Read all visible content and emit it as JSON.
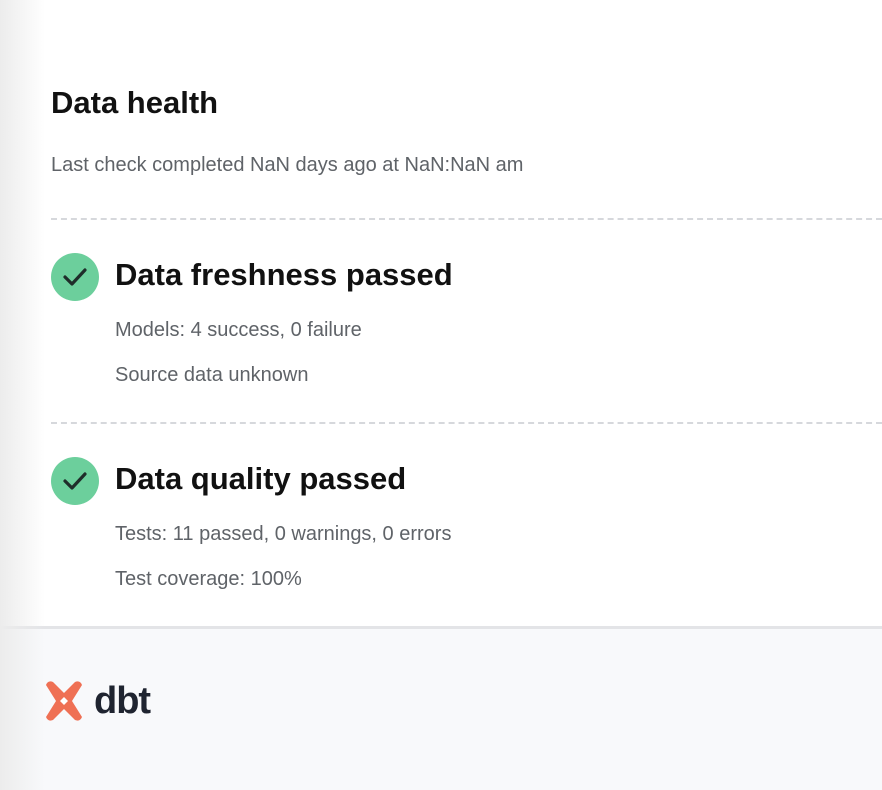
{
  "header": {
    "title": "Data health",
    "last_check": "Last check completed NaN days ago at NaN:NaN am"
  },
  "sections": [
    {
      "icon": "check-circle-icon",
      "title": "Data freshness passed",
      "lines": [
        "Models: 4 success, 0 failure",
        "Source data unknown"
      ]
    },
    {
      "icon": "check-circle-icon",
      "title": "Data quality passed",
      "lines": [
        "Tests: 11 passed, 0 warnings, 0 errors",
        "Test coverage: 100%"
      ]
    }
  ],
  "footer": {
    "logo_text": "dbt"
  },
  "colors": {
    "success": "#6ccf9c",
    "brand": "#ef7054"
  }
}
